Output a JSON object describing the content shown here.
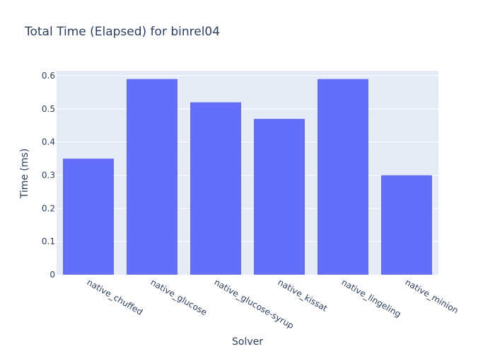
{
  "chart_data": {
    "type": "bar",
    "title": "Total Time (Elapsed) for binrel04",
    "xlabel": "Solver",
    "ylabel": "Time (ms)",
    "categories": [
      "native_chuffed",
      "native_glucose",
      "native_glucose-syrup",
      "native_kissat",
      "native_lingeling",
      "native_minion"
    ],
    "values": [
      0.35,
      0.59,
      0.52,
      0.47,
      0.59,
      0.3
    ],
    "ylim": [
      0,
      0.615
    ],
    "yticks": [
      0,
      0.1,
      0.2,
      0.3,
      0.4,
      0.5,
      0.6
    ],
    "ytick_labels": [
      "0",
      "0.1",
      "0.2",
      "0.3",
      "0.4",
      "0.5",
      "0.6"
    ],
    "grid": true,
    "legend": "none",
    "colors": {
      "bar": "#636efa",
      "plot_background": "#e5ecf6",
      "gridline": "#ffffff",
      "text": "#2a3f5f"
    }
  }
}
